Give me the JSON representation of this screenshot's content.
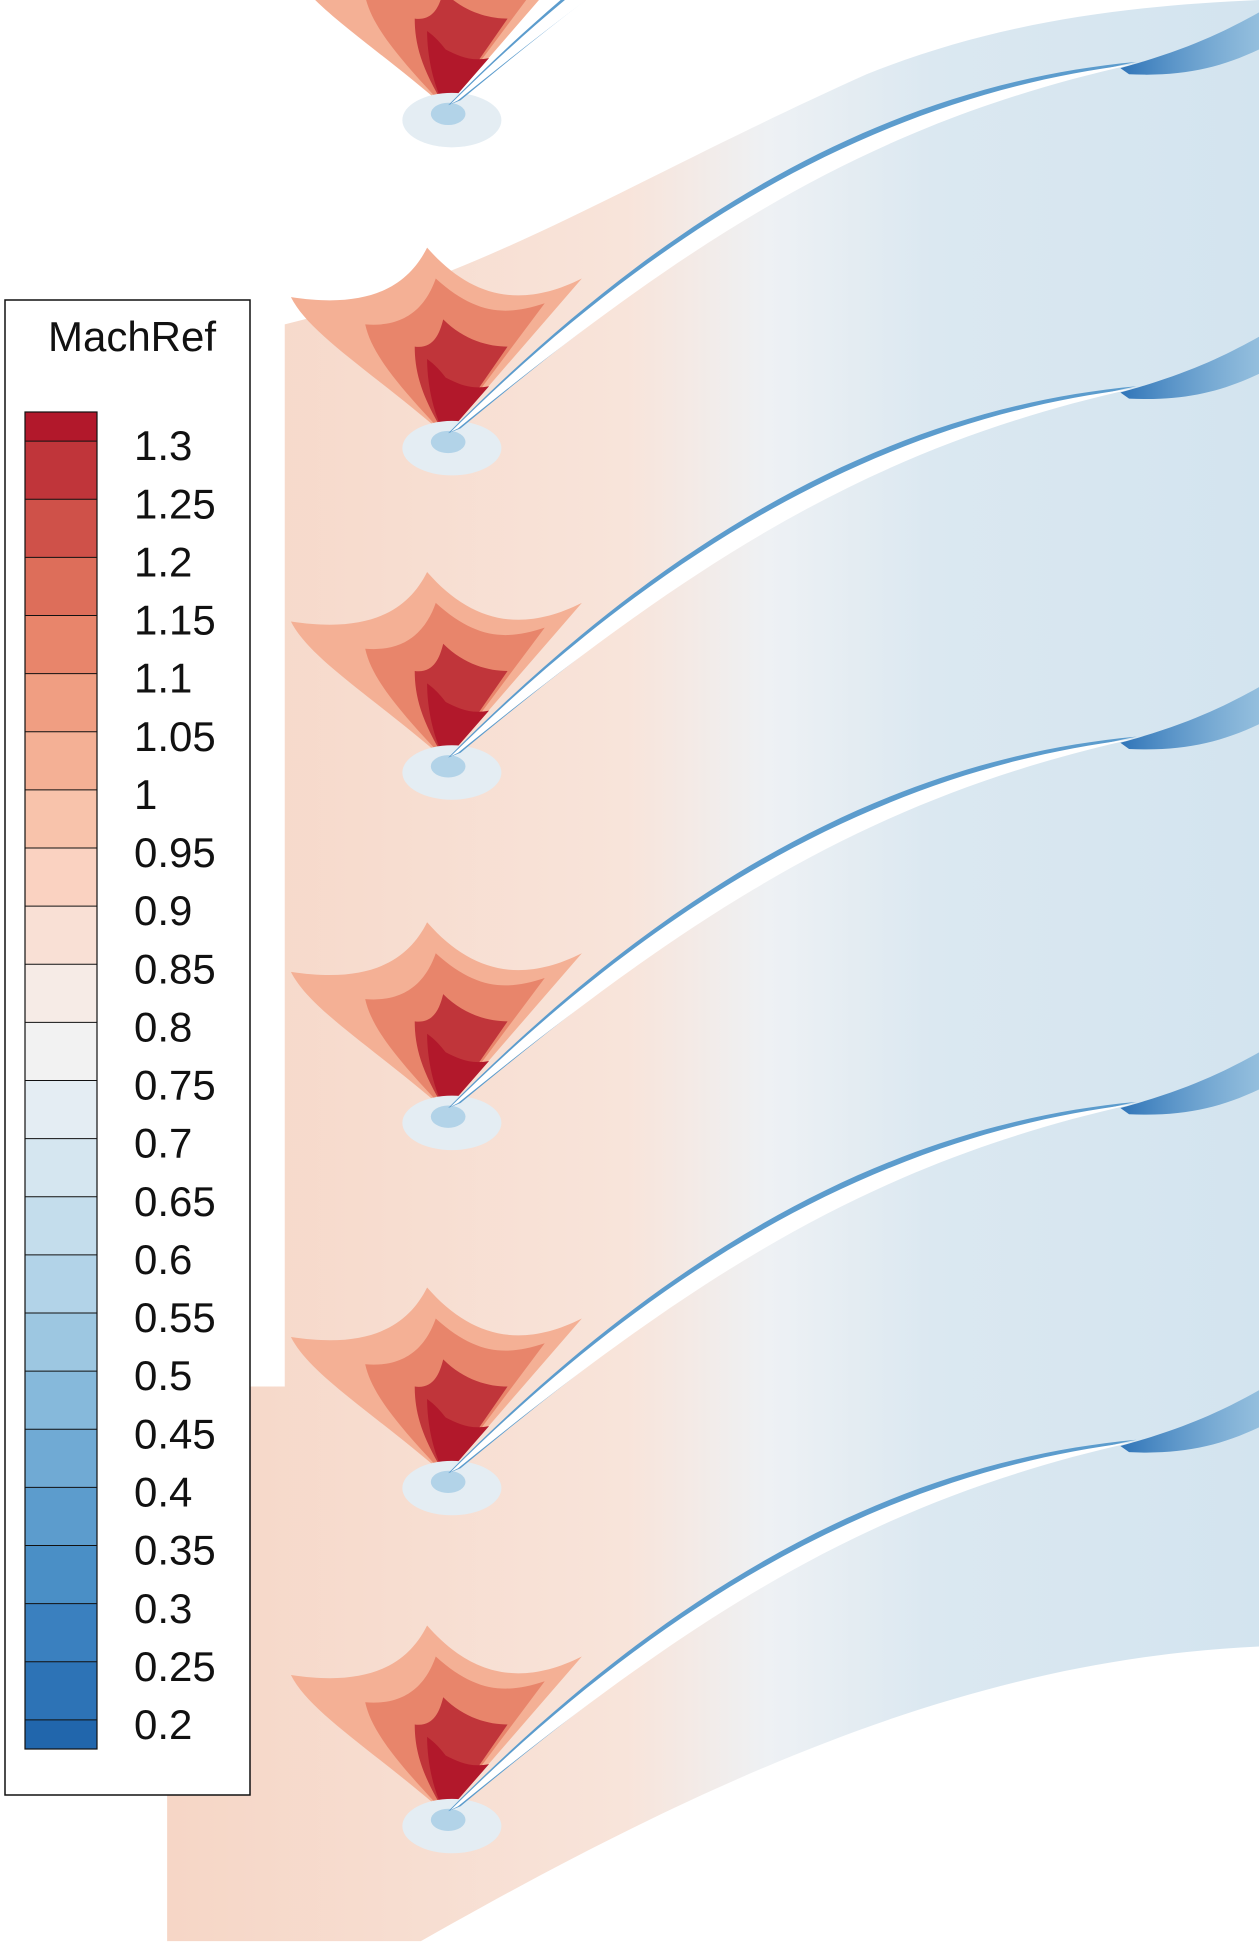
{
  "chart_data": {
    "type": "contour",
    "colorbar": {
      "title": "MachRef",
      "clim": [
        0.175,
        1.325
      ],
      "ticks": [
        0.2,
        0.25,
        0.3,
        0.35,
        0.4,
        0.45,
        0.5,
        0.55,
        0.6,
        0.65,
        0.7,
        0.75,
        0.8,
        0.85,
        0.9,
        0.95,
        1,
        1.05,
        1.1,
        1.15,
        1.2,
        1.25,
        1.3
      ],
      "colors": [
        "#2166ac",
        "#2d73b6",
        "#3a80bf",
        "#4a8fc6",
        "#5c9ccd",
        "#70aad4",
        "#86b9db",
        "#9dc7e1",
        "#b2d3e8",
        "#c4ddec",
        "#d5e6f0",
        "#e4edf3",
        "#f2f2f2",
        "#f6ebe6",
        "#f9e0d5",
        "#fad2c1",
        "#f8c3ab",
        "#f4b095",
        "#f09e82",
        "#e8856b",
        "#dd6e5a",
        "#cf5149",
        "#c0353a",
        "#b2182b"
      ]
    }
  }
}
